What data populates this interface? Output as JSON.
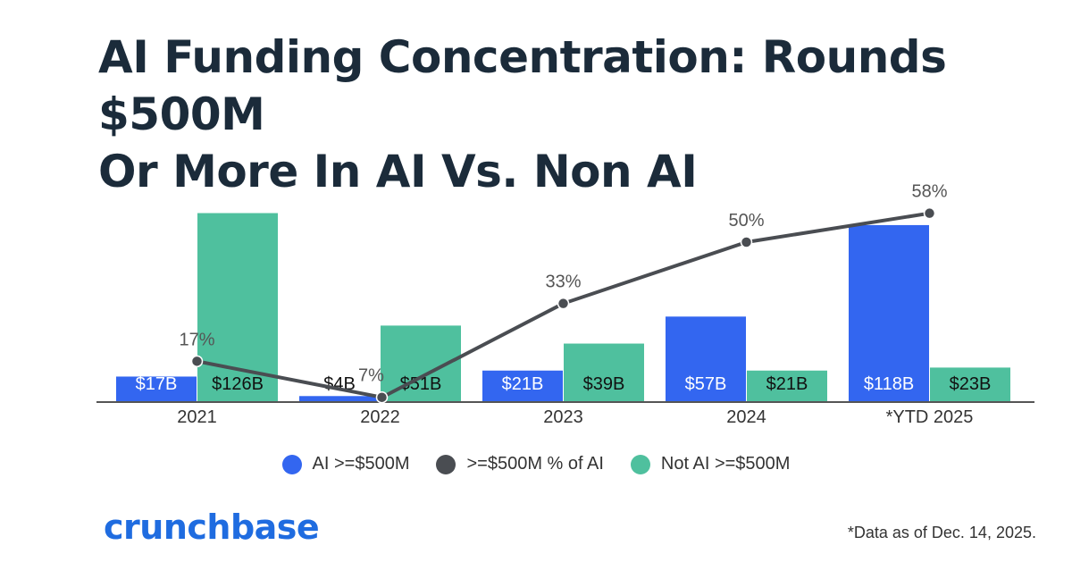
{
  "chart_data": {
    "type": "bar",
    "title": "AI Funding Concentration: Rounds $500M Or More In AI Vs. Non AI",
    "title_lines": [
      "AI Funding Concentration: Rounds $500M",
      "Or More In AI Vs. Non AI"
    ],
    "categories": [
      "2021",
      "2022",
      "2023",
      "2024",
      "*YTD 2025"
    ],
    "series": [
      {
        "name": "AI >=$500M",
        "kind": "bar",
        "color": "#3366f0",
        "values": [
          17,
          4,
          21,
          57,
          118
        ],
        "labels": [
          "$17B",
          "$4B",
          "$21B",
          "$57B",
          "$118B"
        ]
      },
      {
        "name": "Not AI >=$500M",
        "kind": "bar",
        "color": "#4fc09e",
        "values": [
          126,
          51,
          39,
          21,
          23
        ],
        "labels": [
          "$126B",
          "$51B",
          "$39B",
          "$21B",
          "$23B"
        ]
      },
      {
        "name": ">=$500M % of AI",
        "kind": "line",
        "color": "#4a4d52",
        "values": [
          17,
          7,
          33,
          50,
          58
        ],
        "labels": [
          "17%",
          "7%",
          "33%",
          "50%",
          "58%"
        ]
      }
    ],
    "bar_ylim": [
      0,
      140
    ],
    "line_ylim": [
      0,
      70
    ],
    "legend": [
      "AI >=$500M",
      ">=$500M % of AI",
      "Not AI >=$500M"
    ],
    "legend_position": "bottom",
    "grid": false
  },
  "brand": {
    "logo_text": "crunchbase",
    "color": "#1f6ce0"
  },
  "footnote": "*Data as of Dec. 14, 2025."
}
